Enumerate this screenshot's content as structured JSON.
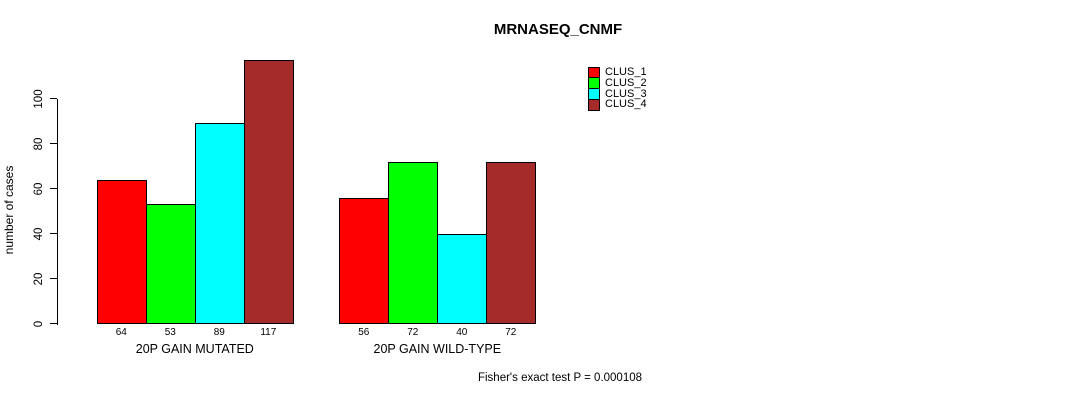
{
  "chart_data": {
    "type": "bar",
    "title": "MRNASEQ_CNMF",
    "ylabel": "number of cases",
    "yticks": [
      0,
      20,
      40,
      60,
      80,
      100
    ],
    "ylim": [
      0,
      117
    ],
    "grid": false,
    "legend_position": "top-right",
    "categories": [
      "20P GAIN MUTATED",
      "20P GAIN WILD-TYPE"
    ],
    "series": [
      {
        "name": "CLUS_1",
        "color": "#FF0000",
        "values": [
          64,
          56
        ]
      },
      {
        "name": "CLUS_2",
        "color": "#00FF00",
        "values": [
          53,
          72
        ]
      },
      {
        "name": "CLUS_3",
        "color": "#00FFFF",
        "values": [
          89,
          40
        ]
      },
      {
        "name": "CLUS_4",
        "color": "#A52A2A",
        "values": [
          117,
          72
        ]
      }
    ],
    "bar_value_labels": [
      [
        64,
        53,
        89,
        117
      ],
      [
        56,
        72,
        40,
        72
      ]
    ],
    "annotation": "Fisher's exact test P = 0.000108"
  },
  "colors": {
    "background": "#FFFFFF",
    "axis": "#000000",
    "bar_border": "#000000",
    "text": "#000000"
  }
}
